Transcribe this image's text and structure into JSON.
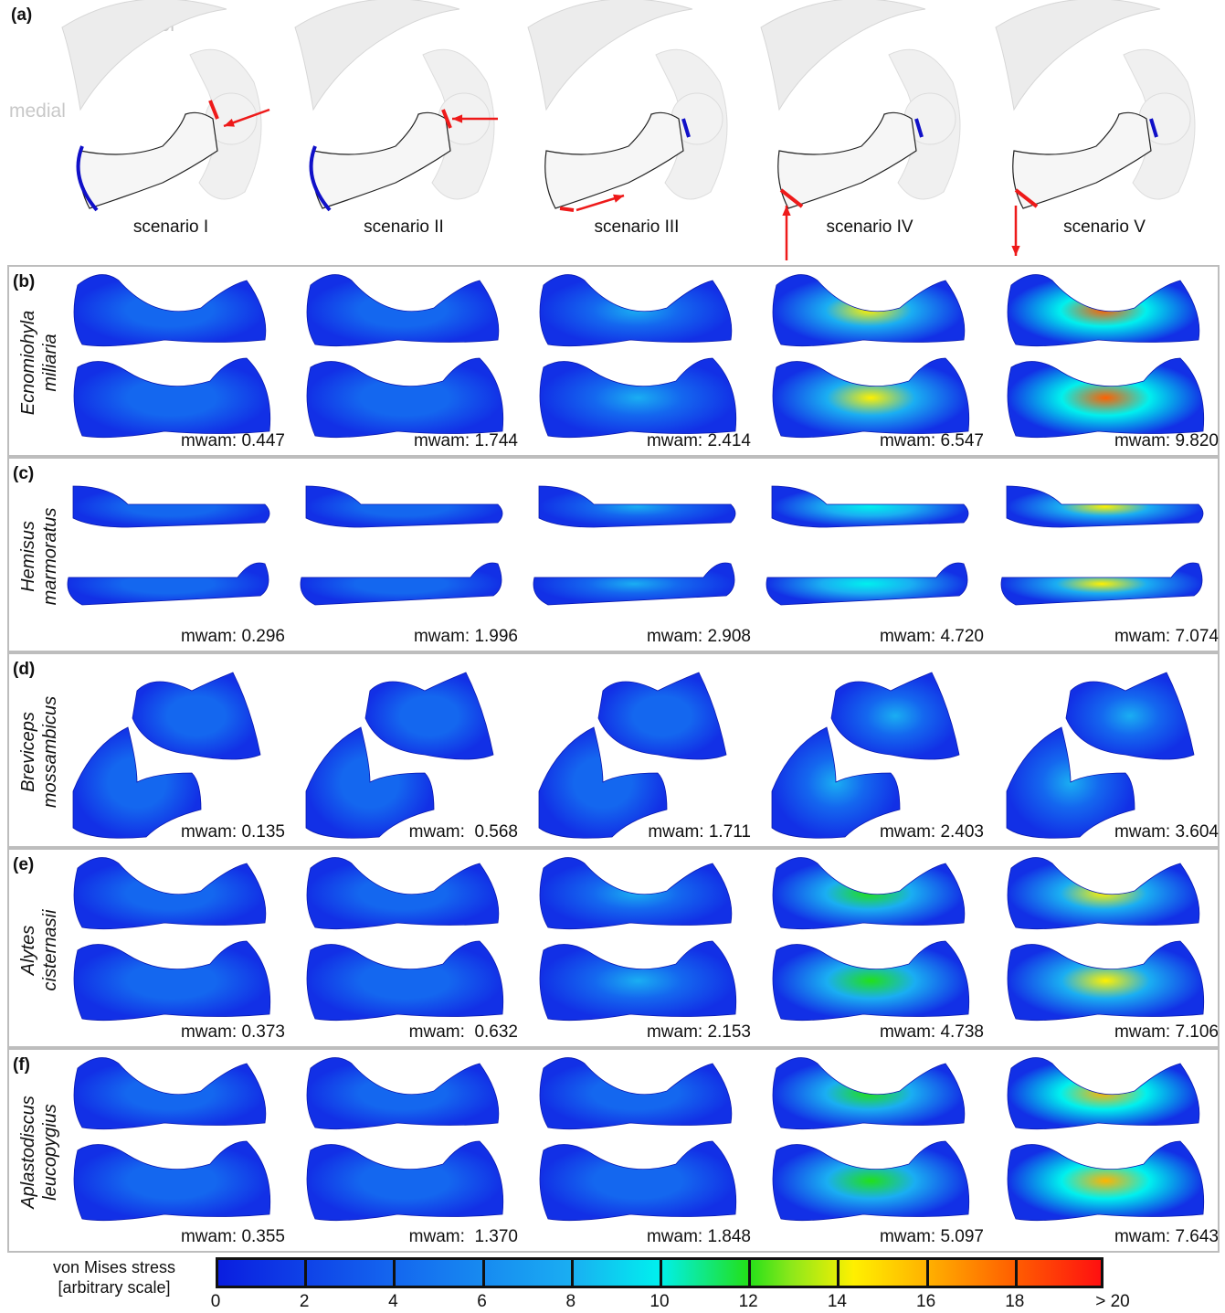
{
  "panel_a": {
    "letter": "(a)",
    "anterior_label": "anterior",
    "medial_label": "medial",
    "scenarios": [
      "scenario I",
      "scenario II",
      "scenario III",
      "scenario IV",
      "scenario V"
    ]
  },
  "species": [
    {
      "letter": "(b)",
      "name_line1": "Ecnomiohyla",
      "name_line2": "miliaria",
      "mwam": [
        "mwam: 0.447",
        "mwam: 1.744",
        "mwam: 2.414",
        "mwam: 6.547",
        "mwam: 9.820"
      ]
    },
    {
      "letter": "(c)",
      "name_line1": "Hemisus",
      "name_line2": "marmoratus",
      "mwam": [
        "mwam: 0.296",
        "mwam: 1.996",
        "mwam: 2.908",
        "mwam: 4.720",
        "mwam: 7.074"
      ]
    },
    {
      "letter": "(d)",
      "name_line1": "Breviceps",
      "name_line2": "mossambicus",
      "mwam": [
        "mwam: 0.135",
        "mwam:  0.568",
        "mwam: 1.711",
        "mwam: 2.403",
        "mwam: 3.604"
      ]
    },
    {
      "letter": "(e)",
      "name_line1": "Alytes",
      "name_line2": "cisternasii",
      "mwam": [
        "mwam: 0.373",
        "mwam:  0.632",
        "mwam: 2.153",
        "mwam: 4.738",
        "mwam: 7.106"
      ]
    },
    {
      "letter": "(f)",
      "name_line1": "Aplastodiscus",
      "name_line2": "leucopygius",
      "mwam": [
        "mwam: 0.355",
        "mwam:  1.370",
        "mwam: 1.848",
        "mwam: 5.097",
        "mwam: 7.643"
      ]
    }
  ],
  "stress_levels": [
    [
      0.02,
      0.12,
      0.22,
      0.7,
      0.9
    ],
    [
      0.02,
      0.18,
      0.25,
      0.5,
      0.65
    ],
    [
      0.01,
      0.06,
      0.18,
      0.25,
      0.35
    ],
    [
      0.02,
      0.06,
      0.25,
      0.55,
      0.7
    ],
    [
      0.02,
      0.14,
      0.2,
      0.55,
      0.75
    ]
  ],
  "legend": {
    "title_line1": "von Mises stress",
    "title_line2": "[arbitrary scale]",
    "ticks": [
      "0",
      "2",
      "4",
      "6",
      "8",
      "10",
      "12",
      "14",
      "16",
      "18",
      "> 20"
    ]
  },
  "colors": {
    "blue": "#1030e0",
    "red": "#ee1a1a",
    "force_arrow": "#ee1a1a",
    "constraint": "#1010c8"
  }
}
